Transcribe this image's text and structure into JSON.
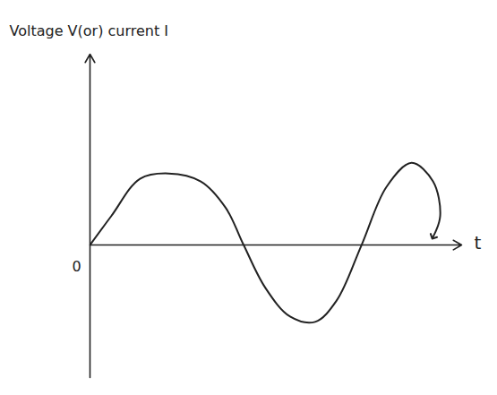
{
  "chart_data": {
    "type": "line",
    "ylabel": "Voltage V(or) current I",
    "xlabel": "t",
    "x": [
      0,
      0.6,
      1.4,
      2.2,
      3.1,
      3.8,
      4.3,
      4.9,
      5.6,
      6.3,
      6.9,
      7.6,
      8.3,
      9.0,
      9.6,
      9.8,
      9.6
    ],
    "values": [
      0,
      1.1,
      2.5,
      2.7,
      2.4,
      1.4,
      0,
      -1.6,
      -2.7,
      -2.9,
      -2.1,
      0,
      2.2,
      3.1,
      2.4,
      1.1,
      0.3
    ],
    "xlim": [
      0,
      10.4
    ],
    "ylim": [
      -5,
      7.2
    ],
    "xticks": [
      0
    ],
    "tick_labels": "x",
    "color": "#222222"
  }
}
